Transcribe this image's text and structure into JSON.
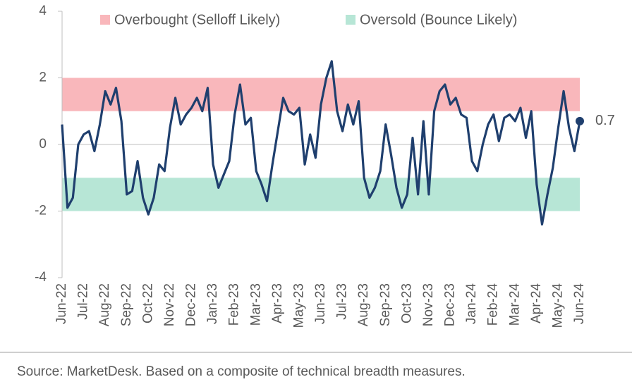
{
  "chart_data": {
    "type": "line",
    "categories": [
      "Jun-22",
      null,
      null,
      null,
      "Jul-22",
      null,
      null,
      null,
      "Aug-22",
      null,
      null,
      null,
      "Sep-22",
      null,
      null,
      null,
      "Oct-22",
      null,
      null,
      null,
      "Nov-22",
      null,
      null,
      null,
      "Dec-22",
      null,
      null,
      null,
      "Jan-23",
      null,
      null,
      null,
      "Feb-23",
      null,
      null,
      null,
      "Mar-23",
      null,
      null,
      null,
      "Apr-23",
      null,
      null,
      null,
      "May-23",
      null,
      null,
      null,
      "Jun-23",
      null,
      null,
      null,
      "Jul-23",
      null,
      null,
      null,
      "Aug-23",
      null,
      null,
      null,
      "Sep-23",
      null,
      null,
      null,
      "Oct-23",
      null,
      null,
      null,
      "Nov-23",
      null,
      null,
      null,
      "Dec-23",
      null,
      null,
      null,
      "Jan-24",
      null,
      null,
      null,
      "Feb-24",
      null,
      null,
      null,
      "Mar-24",
      null,
      null,
      null,
      "Apr-24",
      null,
      null,
      null,
      "May-24",
      null,
      null,
      null,
      "Jun-24"
    ],
    "series": [
      {
        "color": "#1f3f6e",
        "values": [
          0.6,
          -1.9,
          -1.6,
          0.0,
          0.3,
          0.4,
          -0.2,
          0.6,
          1.6,
          1.2,
          1.7,
          0.7,
          -1.5,
          -1.4,
          -0.5,
          -1.6,
          -2.1,
          -1.6,
          -0.6,
          -0.8,
          0.5,
          1.4,
          0.6,
          0.9,
          1.1,
          1.4,
          1.0,
          1.7,
          -0.6,
          -1.3,
          -0.9,
          -0.5,
          0.9,
          1.8,
          0.6,
          0.8,
          -0.8,
          -1.2,
          -1.7,
          -0.6,
          0.4,
          1.4,
          1.0,
          0.9,
          1.1,
          -0.6,
          0.3,
          -0.4,
          1.2,
          2.0,
          2.5,
          1.0,
          0.4,
          1.2,
          0.6,
          1.3,
          -1.0,
          -1.6,
          -1.3,
          -0.8,
          0.6,
          -0.3,
          -1.3,
          -1.9,
          -1.5,
          0.2,
          -1.5,
          0.7,
          -1.5,
          1.0,
          1.6,
          1.8,
          1.2,
          1.4,
          0.9,
          0.8,
          -0.5,
          -0.8,
          0.0,
          0.6,
          0.9,
          0.1,
          0.8,
          0.9,
          0.7,
          1.1,
          0.2,
          1.0,
          -1.2,
          -2.4,
          -1.5,
          -0.7,
          0.5,
          1.6,
          0.5,
          -0.2,
          0.7
        ]
      }
    ],
    "bands": [
      {
        "name": "Overbought (Selloff Likely)",
        "color": "#f9b7bb",
        "range": [
          1,
          2
        ]
      },
      {
        "name": "Oversold (Bounce Likely)",
        "color": "#b7e6d6",
        "range": [
          -2,
          -1
        ]
      }
    ],
    "ylim": [
      -4,
      4
    ],
    "yticks": [
      -4,
      -2,
      0,
      2,
      4
    ],
    "source": "Source: MarketDesk. Based on a composite of technical breadth measures."
  }
}
